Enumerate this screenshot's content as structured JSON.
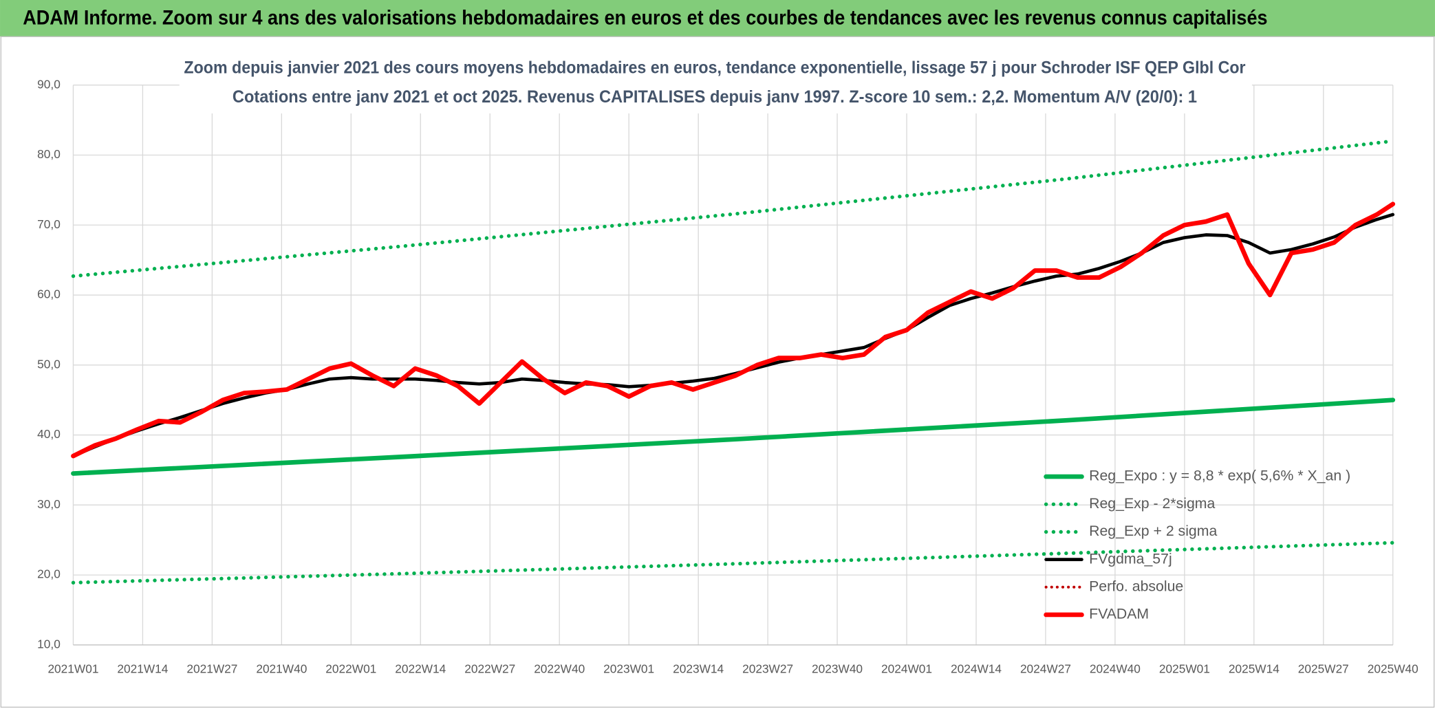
{
  "chart_data": {
    "type": "line",
    "header": "ADAM Informe. Zoom sur 4 ans des valorisations hebdomadaires en euros et des courbes de tendances avec les revenus connus capitalisés",
    "title": "Zoom depuis janvier 2021 des cours moyens hebdomadaires en euros, tendance exponentielle, lissage 57 j pour Schroder ISF QEP Glbl Cor",
    "subtitle": "Cotations entre janv 2021 et oct 2025. Revenus CAPITALISES depuis janv 1997. Z-score 10 sem.: 2,2. Momentum A/V (20/0): 1",
    "xlim": [
      0,
      247
    ],
    "xticks": [
      {
        "value": 0,
        "label": "2021W01"
      },
      {
        "value": 13,
        "label": "2021W14"
      },
      {
        "value": 26,
        "label": "2021W27"
      },
      {
        "value": 39,
        "label": "2021W40"
      },
      {
        "value": 52,
        "label": "2022W01"
      },
      {
        "value": 65,
        "label": "2022W14"
      },
      {
        "value": 78,
        "label": "2022W27"
      },
      {
        "value": 91,
        "label": "2022W40"
      },
      {
        "value": 104,
        "label": "2023W01"
      },
      {
        "value": 117,
        "label": "2023W14"
      },
      {
        "value": 130,
        "label": "2023W27"
      },
      {
        "value": 143,
        "label": "2023W40"
      },
      {
        "value": 156,
        "label": "2024W01"
      },
      {
        "value": 169,
        "label": "2024W14"
      },
      {
        "value": 182,
        "label": "2024W27"
      },
      {
        "value": 195,
        "label": "2024W40"
      },
      {
        "value": 208,
        "label": "2025W01"
      },
      {
        "value": 221,
        "label": "2025W14"
      },
      {
        "value": 234,
        "label": "2025W27"
      },
      {
        "value": 247,
        "label": "2025W40"
      }
    ],
    "ylim": [
      10,
      90
    ],
    "yticks": [
      {
        "value": 10,
        "label": "10,0"
      },
      {
        "value": 20,
        "label": "20,0"
      },
      {
        "value": 30,
        "label": "30,0"
      },
      {
        "value": 40,
        "label": "40,0"
      },
      {
        "value": 50,
        "label": "50,0"
      },
      {
        "value": 60,
        "label": "60,0"
      },
      {
        "value": 70,
        "label": "70,0"
      },
      {
        "value": 80,
        "label": "80,0"
      },
      {
        "value": 90,
        "label": "90,0"
      }
    ],
    "grid": true,
    "legend": "lower right",
    "series": [
      {
        "name": "Reg_Expo : y = 8,8 * exp( 5,6% *  X_an )",
        "color": "#00b050",
        "style": "solid",
        "width": 5,
        "x": [
          0,
          62,
          124,
          186,
          247
        ],
        "values": [
          34.5,
          36.9,
          39.4,
          42.1,
          45.0
        ]
      },
      {
        "name": "Reg_Exp - 2*sigma",
        "color": "#00b050",
        "style": "dotted",
        "width": 4,
        "x": [
          0,
          62,
          124,
          186,
          247
        ],
        "values": [
          18.9,
          20.2,
          21.6,
          23.1,
          24.6
        ]
      },
      {
        "name": "Reg_Exp + 2 sigma",
        "color": "#00b050",
        "style": "dotted",
        "width": 4,
        "x": [
          0,
          62,
          124,
          186,
          247
        ],
        "values": [
          62.7,
          67.0,
          71.6,
          76.6,
          82.0
        ]
      },
      {
        "name": "FVgdma_57j",
        "color": "#000000",
        "style": "solid",
        "width": 3.5,
        "x": [
          0,
          4,
          8,
          12,
          16,
          20,
          24,
          28,
          32,
          36,
          40,
          44,
          48,
          52,
          56,
          60,
          64,
          68,
          72,
          76,
          80,
          84,
          88,
          92,
          96,
          100,
          104,
          108,
          112,
          116,
          120,
          124,
          128,
          132,
          136,
          140,
          144,
          148,
          152,
          156,
          160,
          164,
          168,
          172,
          176,
          180,
          184,
          188,
          192,
          196,
          200,
          204,
          208,
          212,
          216,
          220,
          224,
          228,
          232,
          236,
          240,
          244,
          247
        ],
        "values": [
          37.0,
          38.3,
          39.5,
          40.6,
          41.6,
          42.5,
          43.5,
          44.5,
          45.3,
          46.0,
          46.5,
          47.3,
          48.0,
          48.2,
          48.0,
          48.0,
          48.0,
          47.8,
          47.5,
          47.3,
          47.5,
          48.0,
          47.8,
          47.5,
          47.3,
          47.2,
          46.9,
          47.1,
          47.4,
          47.7,
          48.1,
          48.8,
          49.6,
          50.4,
          51.0,
          51.5,
          52.0,
          52.5,
          53.8,
          55.0,
          56.8,
          58.5,
          59.5,
          60.3,
          61.2,
          62.0,
          62.7,
          63.0,
          63.8,
          64.8,
          66.0,
          67.5,
          68.2,
          68.6,
          68.5,
          67.5,
          66.0,
          66.5,
          67.3,
          68.3,
          69.7,
          70.8,
          71.5
        ]
      },
      {
        "name": "Perfo. absolue",
        "color": "#c00000",
        "style": "dotted",
        "width": 3
      },
      {
        "name": "FVADAM",
        "color": "#ff0000",
        "style": "solid",
        "width": 5,
        "x": [
          0,
          4,
          8,
          12,
          16,
          20,
          24,
          28,
          32,
          36,
          40,
          44,
          48,
          52,
          56,
          60,
          64,
          68,
          72,
          76,
          80,
          84,
          88,
          92,
          96,
          100,
          104,
          108,
          112,
          116,
          120,
          124,
          128,
          132,
          136,
          140,
          144,
          148,
          152,
          156,
          160,
          164,
          168,
          172,
          176,
          180,
          184,
          188,
          192,
          196,
          200,
          204,
          208,
          212,
          216,
          220,
          224,
          228,
          232,
          236,
          240,
          244,
          247
        ],
        "values": [
          37.0,
          38.5,
          39.5,
          40.8,
          42.0,
          41.8,
          43.3,
          45.0,
          46.0,
          46.2,
          46.5,
          48.0,
          49.5,
          50.2,
          48.5,
          47.0,
          49.5,
          48.5,
          47.0,
          44.5,
          47.5,
          50.5,
          48.0,
          46.0,
          47.5,
          47.0,
          45.5,
          47.0,
          47.5,
          46.5,
          47.5,
          48.5,
          50.0,
          51.0,
          51.0,
          51.5,
          51.0,
          51.5,
          54.0,
          55.0,
          57.5,
          59.0,
          60.5,
          59.5,
          61.0,
          63.5,
          63.5,
          62.5,
          62.5,
          64.0,
          66.0,
          68.5,
          70.0,
          70.5,
          71.5,
          64.5,
          60.0,
          66.0,
          66.5,
          67.5,
          70.0,
          71.5,
          73.0
        ]
      }
    ]
  }
}
